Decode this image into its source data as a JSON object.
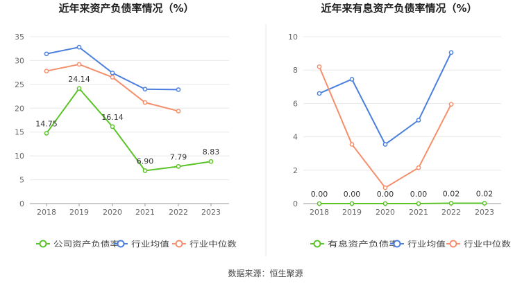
{
  "source": "数据来源：恒生聚源",
  "chart_data": [
    {
      "type": "line",
      "title": "近年来资产负债率情况（%）",
      "categories": [
        "2018",
        "2019",
        "2020",
        "2021",
        "2022",
        "2023"
      ],
      "ylim": [
        0,
        35
      ],
      "yticks": [
        0,
        5,
        10,
        15,
        20,
        25,
        30,
        35
      ],
      "grid": true,
      "legend_position": "bottom",
      "series": [
        {
          "name": "公司资产负债率",
          "color": "#5ac327",
          "values": [
            14.75,
            24.14,
            16.14,
            6.9,
            7.79,
            8.83
          ],
          "labels": [
            "14.75",
            "24.14",
            "16.14",
            "6.90",
            "7.79",
            "8.83"
          ]
        },
        {
          "name": "行业均值",
          "color": "#4a7fdd",
          "values": [
            31.4,
            32.8,
            27.4,
            24.0,
            23.9,
            null
          ]
        },
        {
          "name": "行业中位数",
          "color": "#f58f6b",
          "values": [
            27.8,
            29.2,
            26.5,
            21.2,
            19.4,
            null
          ]
        }
      ]
    },
    {
      "type": "line",
      "title": "近年来有息资产负债率情况（%）",
      "categories": [
        "2018",
        "2019",
        "2020",
        "2021",
        "2022",
        "2023"
      ],
      "ylim": [
        0,
        10
      ],
      "yticks": [
        0,
        2,
        4,
        6,
        8,
        10
      ],
      "grid": true,
      "legend_position": "bottom",
      "series": [
        {
          "name": "有息资产负债率",
          "color": "#5ac327",
          "values": [
            0.0,
            0.0,
            0.0,
            0.0,
            0.02,
            0.02
          ],
          "labels": [
            "0.00",
            "0.00",
            "0.00",
            "0.00",
            "0.02",
            "0.02"
          ]
        },
        {
          "name": "行业均值",
          "color": "#4a7fdd",
          "values": [
            6.6,
            7.45,
            3.55,
            5.0,
            9.05,
            null
          ]
        },
        {
          "name": "行业中位数",
          "color": "#f58f6b",
          "values": [
            8.2,
            3.55,
            0.95,
            2.15,
            5.95,
            null
          ]
        }
      ]
    }
  ]
}
